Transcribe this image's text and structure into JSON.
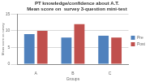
{
  "chart_data": {
    "type": "bar",
    "title": [
      "PT knowledge/confidence about A.T.",
      "Mean score on  survey 3-question mini-test"
    ],
    "x_label": "Groups",
    "y_label": "Mean score on survey",
    "categories": [
      "A",
      "B",
      "C"
    ],
    "series": [
      {
        "name": "Pre",
        "color": "#4f81bd",
        "values": [
          9,
          8,
          8.5
        ]
      },
      {
        "name": "Post",
        "color": "#c0504d",
        "values": [
          10,
          12,
          8
        ]
      }
    ],
    "ylim": [
      0,
      15
    ],
    "yticks": [
      0,
      5,
      10,
      15
    ],
    "grid": true,
    "legend": "right"
  }
}
